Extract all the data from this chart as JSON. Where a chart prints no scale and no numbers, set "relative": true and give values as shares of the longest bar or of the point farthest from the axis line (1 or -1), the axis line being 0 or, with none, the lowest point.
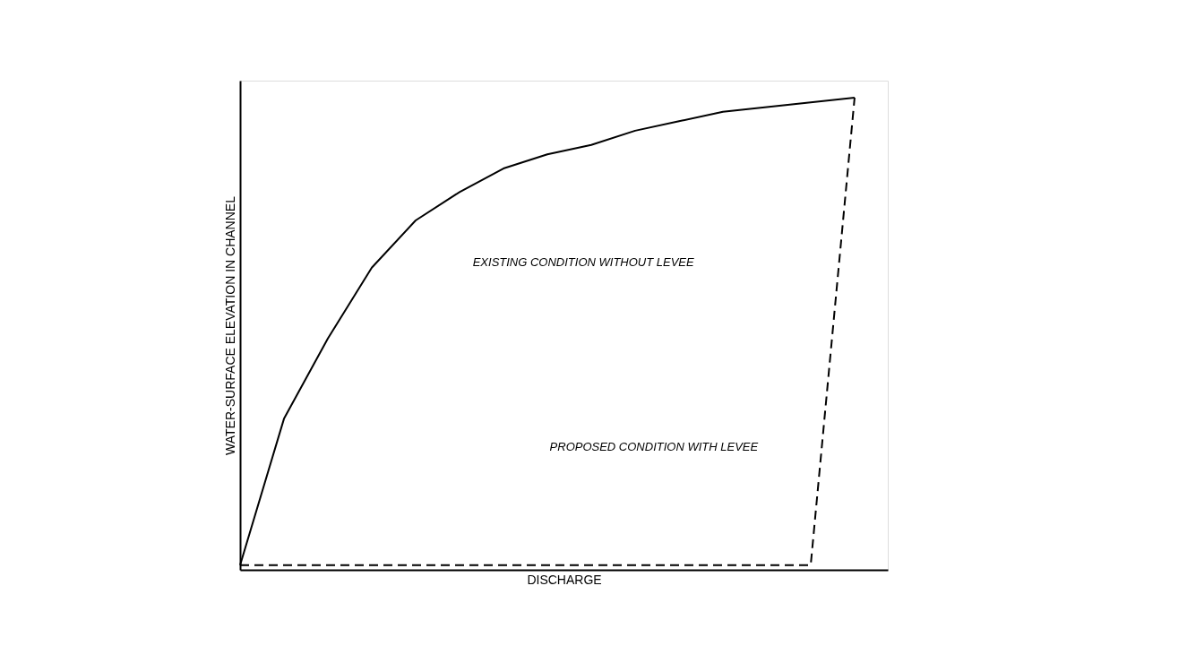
{
  "chart_data": {
    "type": "line",
    "relative": true,
    "xlabel": "DISCHARGE",
    "ylabel": "WATER-SURFACE ELEVATION IN CHANNEL",
    "categories": [
      null,
      null,
      null,
      null,
      null,
      null,
      null,
      null,
      null,
      null,
      null,
      null,
      null,
      null,
      null
    ],
    "series": [
      {
        "color": "#000000",
        "line_style": "solid",
        "values": [
          0.01,
          0.32,
          0.49,
          0.64,
          0.74,
          0.8,
          0.85,
          0.88,
          0.9,
          0.93,
          0.95,
          0.97,
          0.98,
          0.99,
          1
        ]
      },
      {
        "color": "#000000",
        "line_style": "dashed",
        "values": [
          0.01,
          0.01,
          0.01,
          0.01,
          0.01,
          0.01,
          0.01,
          0.01,
          0.01,
          0.01,
          0.01,
          0.01,
          0.01,
          0.01,
          1
        ]
      }
    ],
    "annotations": [
      "EXISTING CONDITION WITHOUT LEVEE",
      "PROPOSED CONDITION WITH LEVEE"
    ]
  }
}
